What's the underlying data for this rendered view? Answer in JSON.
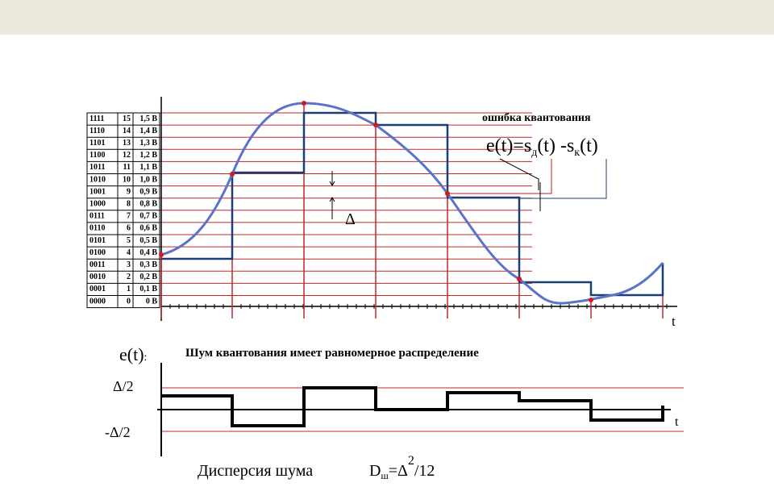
{
  "table": {
    "rows": [
      [
        "1111",
        "15",
        "1,5 В"
      ],
      [
        "1110",
        "14",
        "1,4 В"
      ],
      [
        "1101",
        "13",
        "1,3 В"
      ],
      [
        "1100",
        "12",
        "1,2 В"
      ],
      [
        "1011",
        "11",
        "1,1 В"
      ],
      [
        "1010",
        "10",
        "1,0 В"
      ],
      [
        "1001",
        "9",
        "0,9 В"
      ],
      [
        "1000",
        "8",
        "0,8 В"
      ],
      [
        "0111",
        "7",
        "0,7 В"
      ],
      [
        "0110",
        "6",
        "0,6 В"
      ],
      [
        "0101",
        "5",
        "0,5 В"
      ],
      [
        "0100",
        "4",
        "0,4 В"
      ],
      [
        "0011",
        "3",
        "0,3 В"
      ],
      [
        "0010",
        "2",
        "0,2 В"
      ],
      [
        "0001",
        "1",
        "0,1 В"
      ],
      [
        "0000",
        "0",
        "0 В"
      ]
    ]
  },
  "top_plot": {
    "t_label": "t",
    "delta": "Δ",
    "error_title": "ошибка квантования",
    "formula": {
      "head": "e(t)=s",
      "sub1": "д",
      "mid": "(t) -s",
      "sub2": "к",
      "tail": "(t)"
    }
  },
  "bottom_plot": {
    "y_label": "e(t)",
    "colon": ":",
    "caption": "Шум квантования имеет равномерное распределение",
    "plus_half": "Δ/2",
    "minus_half": "-Δ/2",
    "t_label": "t",
    "variance_text": "Дисперсия шума",
    "variance": {
      "head": "D",
      "sub": "ш",
      "eq": "=Δ",
      "sup": "2",
      "tail": "/12"
    }
  }
}
